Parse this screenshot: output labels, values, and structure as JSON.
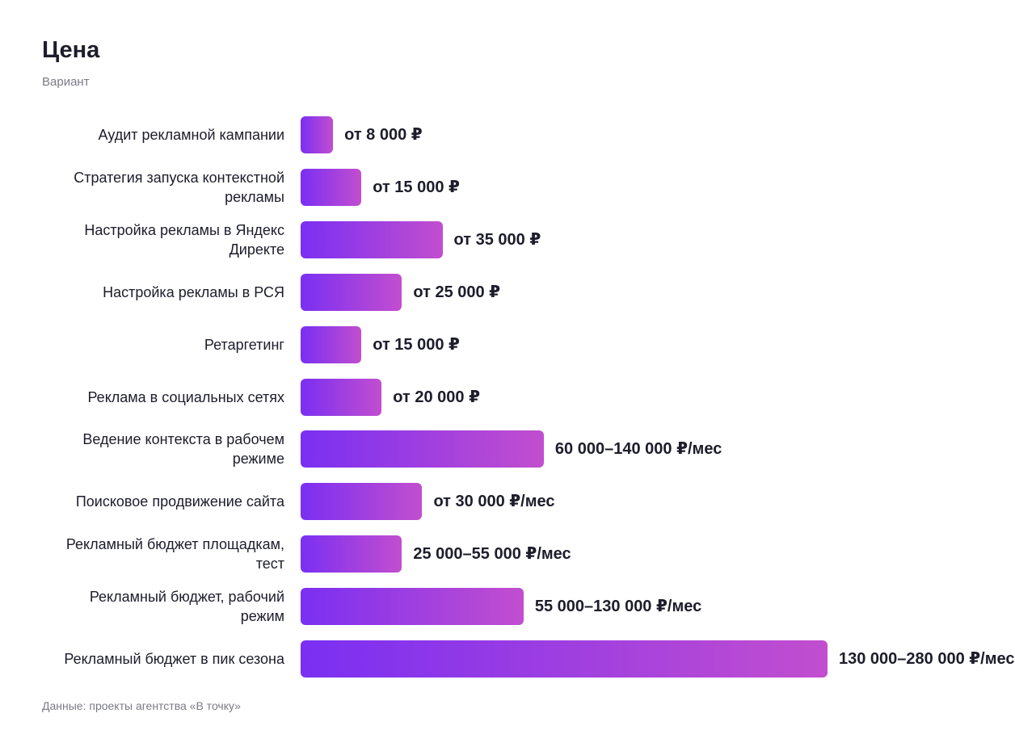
{
  "chart_data": {
    "type": "bar",
    "orientation": "horizontal",
    "title": "Цена",
    "subtitle": "Вариант",
    "source": "Данные: проекты агентства «В точку»",
    "categories": [
      "Аудит рекламной кампании",
      "Стратегия запуска контекстной рекламы",
      "Настройка рекламы в Яндекс Директе",
      "Настройка рекламы в РСЯ",
      "Ретаргетинг",
      "Реклама в социальных сетях",
      "Ведение контекста в рабочем режиме",
      "Поисковое продвижение сайта",
      "Рекламный бюджет площадкам, тест",
      "Рекламный бюджет, рабочий режим",
      "Рекламный бюджет в пик сезона"
    ],
    "values": [
      8000,
      15000,
      35000,
      25000,
      15000,
      20000,
      60000,
      30000,
      25000,
      55000,
      130000
    ],
    "value_labels": [
      "от 8 000 ₽",
      "от 15 000 ₽",
      "от 35 000 ₽",
      "от 25 000 ₽",
      "от 15 000 ₽",
      "от 20 000 ₽",
      "60 000–140 000 ₽/мес",
      "от 30 000 ₽/мес",
      "25 000–55 000 ₽/мес",
      "55 000–130 000 ₽/мес",
      "130 000–280 000 ₽/мес"
    ],
    "gradient": [
      "#7a2ff2",
      "#c24ecf"
    ]
  }
}
